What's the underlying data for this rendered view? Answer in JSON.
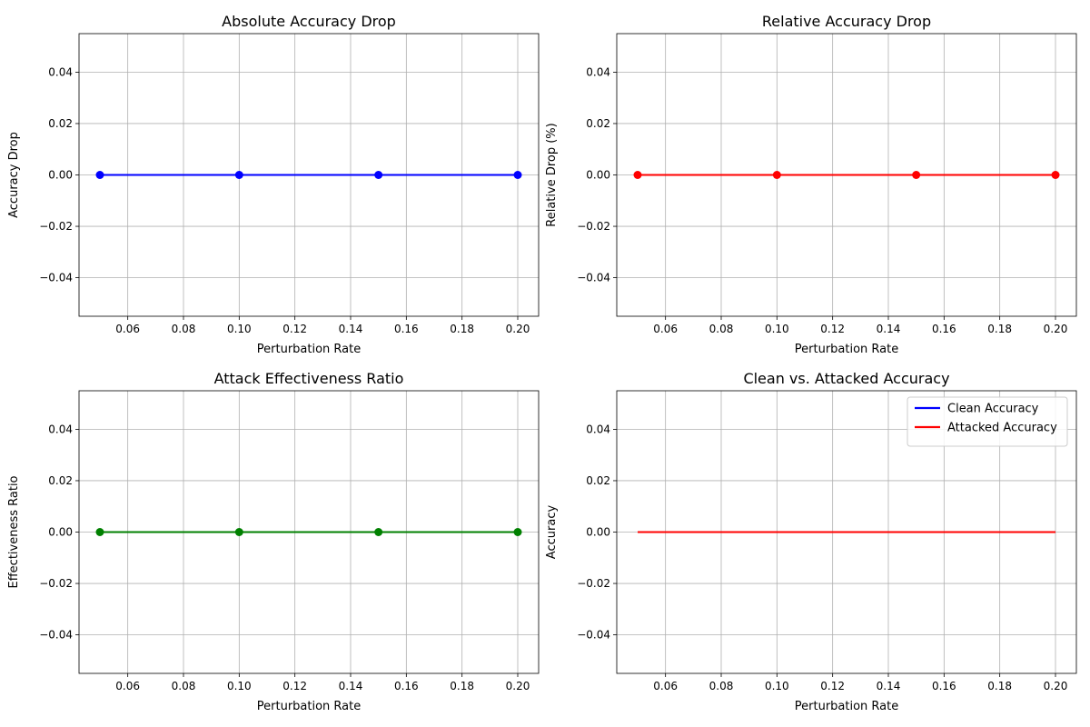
{
  "chart_data": [
    {
      "type": "line",
      "title": "Absolute Accuracy Drop",
      "xlabel": "Perturbation Rate",
      "ylabel": "Accuracy Drop",
      "xlim": [
        0.0425,
        0.2075
      ],
      "ylim": [
        -0.055,
        0.055
      ],
      "xticks": [
        "0.06",
        "0.08",
        "0.10",
        "0.12",
        "0.14",
        "0.16",
        "0.18",
        "0.20"
      ],
      "yticks": [
        "−0.04",
        "−0.02",
        "0.00",
        "0.02",
        "0.04"
      ],
      "grid": true,
      "series": [
        {
          "x": [
            0.05,
            0.1,
            0.15,
            0.2
          ],
          "y": [
            0,
            0,
            0,
            0
          ],
          "color": "#0000ff",
          "markers": true
        }
      ]
    },
    {
      "type": "line",
      "title": "Relative Accuracy Drop",
      "xlabel": "Perturbation Rate",
      "ylabel": "Relative Drop (%)",
      "xlim": [
        0.0425,
        0.2075
      ],
      "ylim": [
        -0.055,
        0.055
      ],
      "xticks": [
        "0.06",
        "0.08",
        "0.10",
        "0.12",
        "0.14",
        "0.16",
        "0.18",
        "0.20"
      ],
      "yticks": [
        "−0.04",
        "−0.02",
        "0.00",
        "0.02",
        "0.04"
      ],
      "grid": true,
      "series": [
        {
          "x": [
            0.05,
            0.1,
            0.15,
            0.2
          ],
          "y": [
            0,
            0,
            0,
            0
          ],
          "color": "#ff0000",
          "markers": true
        }
      ]
    },
    {
      "type": "line",
      "title": "Attack Effectiveness Ratio",
      "xlabel": "Perturbation Rate",
      "ylabel": "Effectiveness Ratio",
      "xlim": [
        0.0425,
        0.2075
      ],
      "ylim": [
        -0.055,
        0.055
      ],
      "xticks": [
        "0.06",
        "0.08",
        "0.10",
        "0.12",
        "0.14",
        "0.16",
        "0.18",
        "0.20"
      ],
      "yticks": [
        "−0.04",
        "−0.02",
        "0.00",
        "0.02",
        "0.04"
      ],
      "grid": true,
      "series": [
        {
          "x": [
            0.05,
            0.1,
            0.15,
            0.2
          ],
          "y": [
            0,
            0,
            0,
            0
          ],
          "color": "#008000",
          "markers": true
        }
      ]
    },
    {
      "type": "line",
      "title": "Clean vs. Attacked Accuracy",
      "xlabel": "Perturbation Rate",
      "ylabel": "Accuracy",
      "xlim": [
        0.0425,
        0.2075
      ],
      "ylim": [
        -0.055,
        0.055
      ],
      "xticks": [
        "0.06",
        "0.08",
        "0.10",
        "0.12",
        "0.14",
        "0.16",
        "0.18",
        "0.20"
      ],
      "yticks": [
        "−0.04",
        "−0.02",
        "0.00",
        "0.02",
        "0.04"
      ],
      "grid": true,
      "legend": "top-right",
      "series": [
        {
          "name": "Clean Accuracy",
          "x": [
            0.05,
            0.1,
            0.15,
            0.2
          ],
          "y": [
            0,
            0,
            0,
            0
          ],
          "color": "#0000ff",
          "markers": false
        },
        {
          "name": "Attacked Accuracy",
          "x": [
            0.05,
            0.1,
            0.15,
            0.2
          ],
          "y": [
            0,
            0,
            0,
            0
          ],
          "color": "#ff0000",
          "markers": false
        }
      ]
    }
  ]
}
